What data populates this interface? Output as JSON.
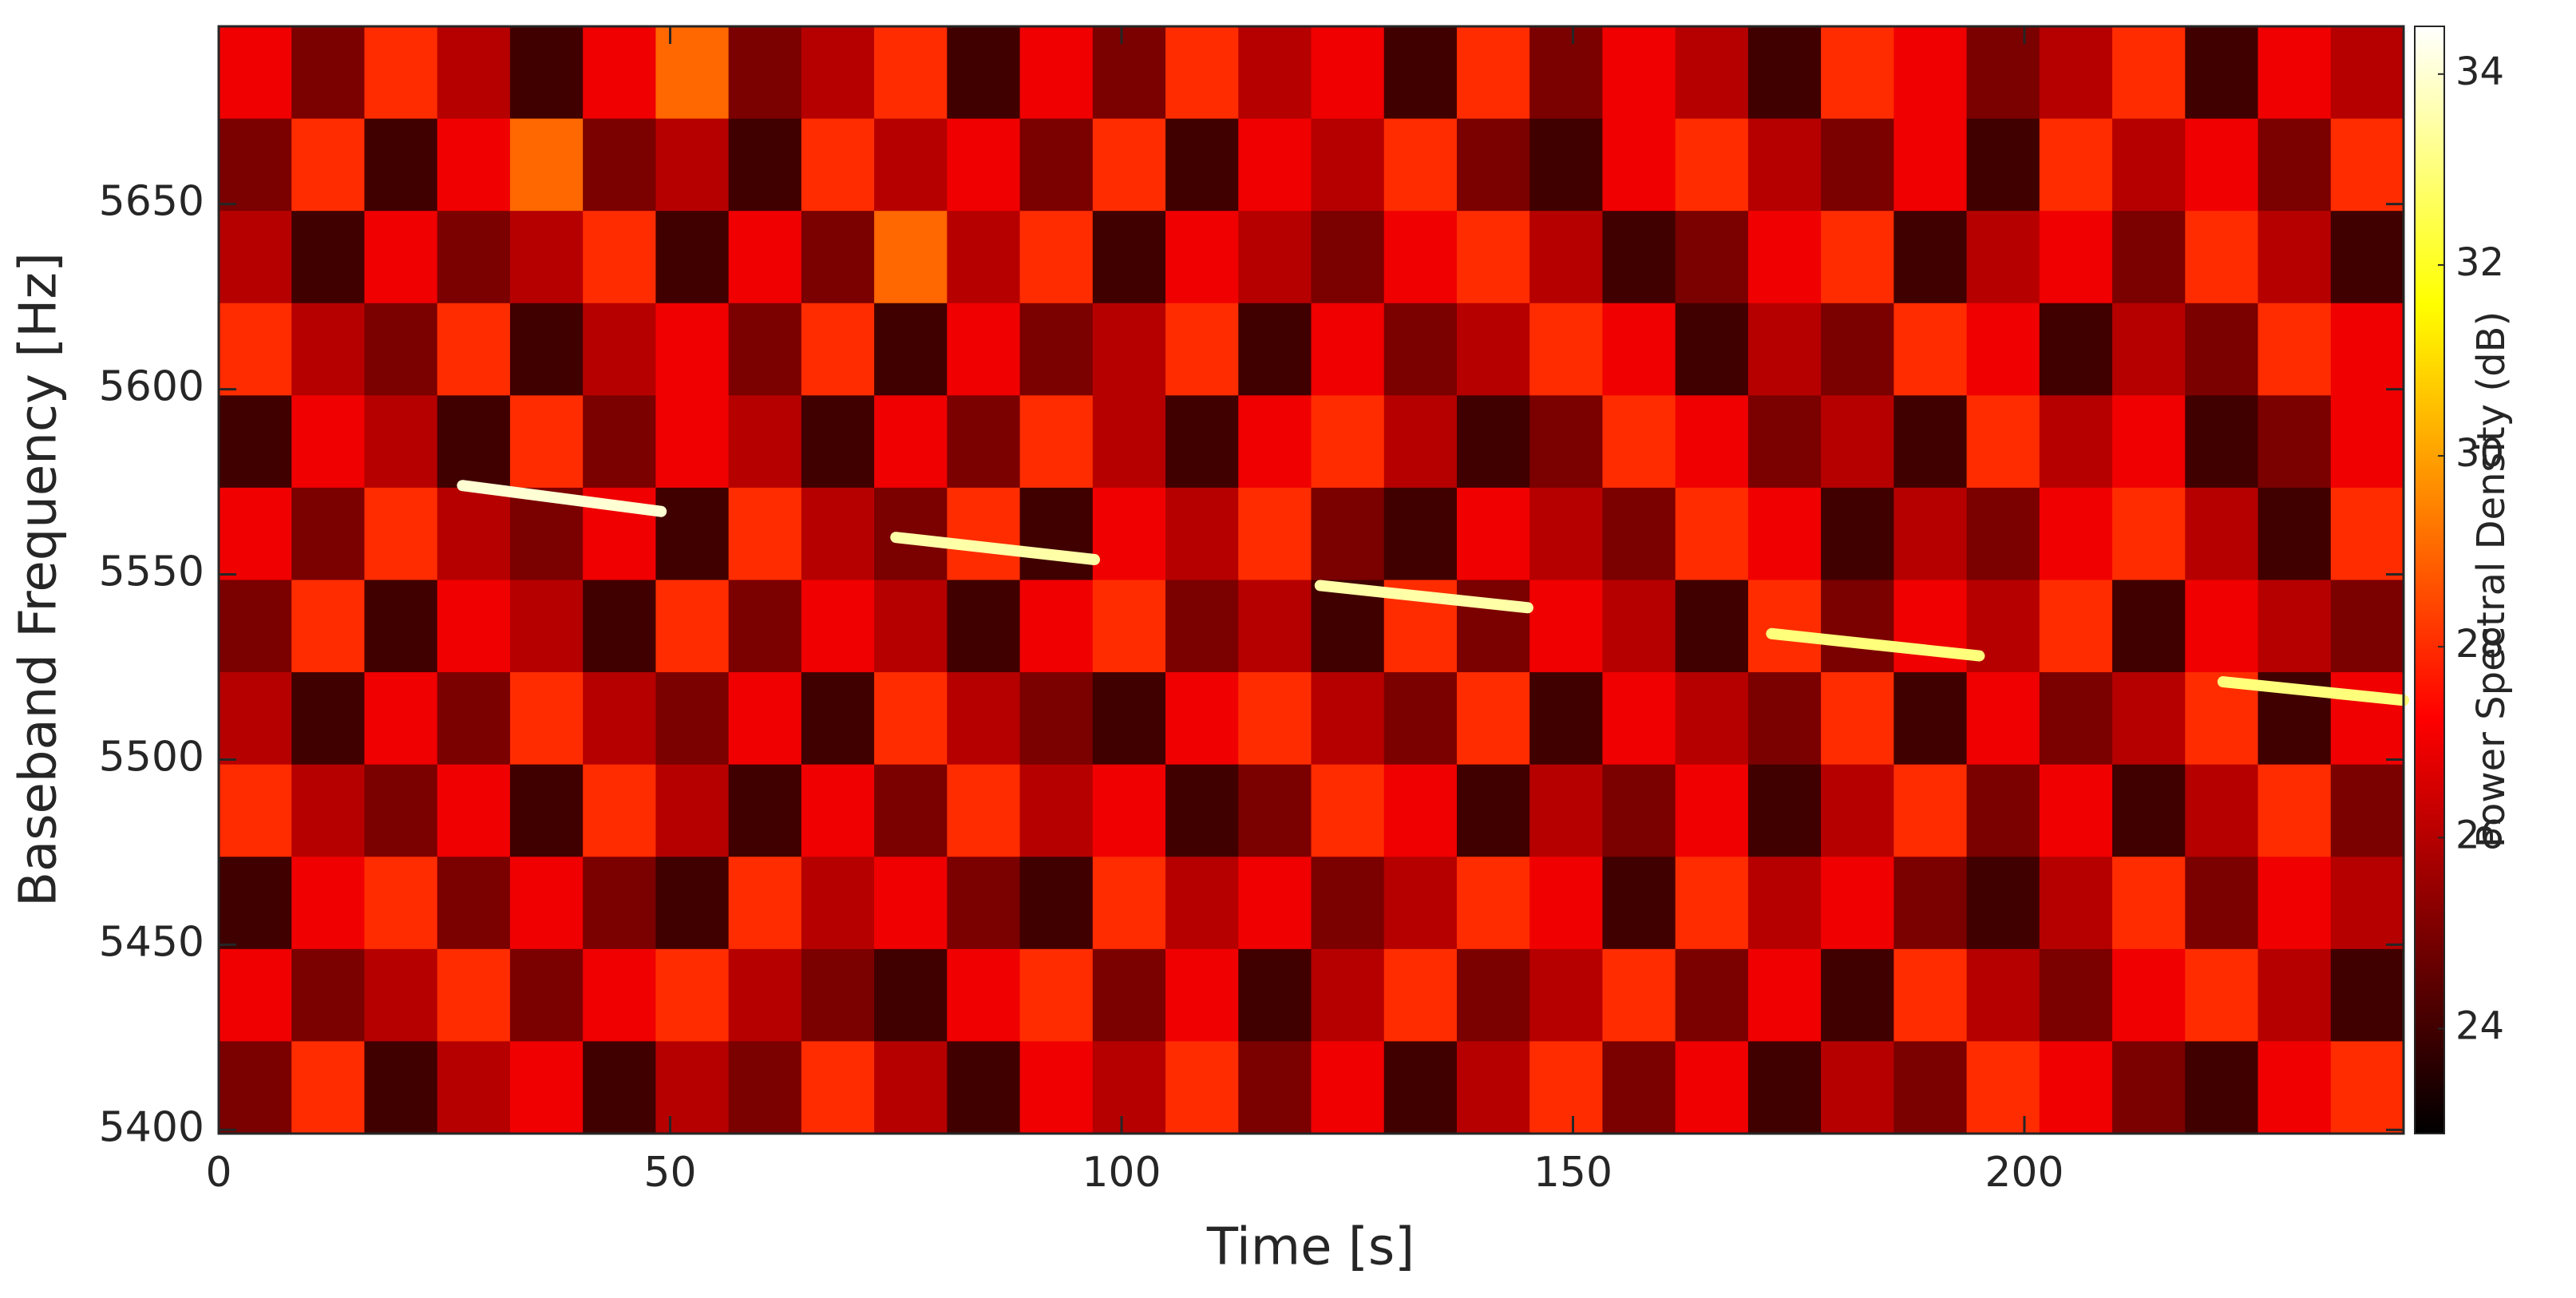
{
  "chart_data": {
    "type": "heatmap",
    "x_label": "Time [s]",
    "y_label": "Baseband Frequency [Hz]",
    "colorbar_label": "Power Spectral Density (dB)",
    "colormap": "hot",
    "xlim": [
      0,
      242
    ],
    "ylim": [
      5399,
      5698
    ],
    "clim": [
      22.9,
      34.5
    ],
    "xticks": [
      0,
      50,
      100,
      150,
      200
    ],
    "yticks": [
      5400,
      5450,
      5500,
      5550,
      5600,
      5650
    ],
    "cticks": [
      24,
      26,
      28,
      30,
      32,
      34
    ],
    "z": [
      [
        27,
        25,
        28,
        26,
        24,
        27,
        29,
        25,
        26,
        28,
        24,
        27,
        25,
        28,
        26,
        27,
        24,
        28,
        25,
        27,
        26,
        24,
        28,
        27,
        25,
        26,
        28,
        24,
        27,
        26
      ],
      [
        25,
        28,
        24,
        27,
        29,
        25,
        26,
        24,
        28,
        26,
        27,
        25,
        28,
        24,
        27,
        26,
        28,
        25,
        24,
        27,
        28,
        26,
        25,
        27,
        24,
        28,
        26,
        27,
        25,
        28
      ],
      [
        26,
        24,
        27,
        25,
        26,
        28,
        24,
        27,
        25,
        29,
        26,
        28,
        24,
        27,
        26,
        25,
        27,
        28,
        26,
        24,
        25,
        27,
        28,
        24,
        26,
        27,
        25,
        28,
        26,
        24
      ],
      [
        28,
        26,
        25,
        28,
        24,
        26,
        27,
        25,
        28,
        24,
        27,
        25,
        26,
        28,
        24,
        27,
        25,
        26,
        28,
        27,
        24,
        26,
        25,
        28,
        27,
        24,
        26,
        25,
        28,
        27
      ],
      [
        24,
        27,
        26,
        24,
        28,
        25,
        27,
        26,
        24,
        27,
        25,
        28,
        26,
        24,
        27,
        28,
        26,
        24,
        25,
        28,
        27,
        25,
        26,
        24,
        28,
        26,
        27,
        24,
        25,
        27
      ],
      [
        27,
        25,
        28,
        26,
        25,
        27,
        24,
        28,
        26,
        25,
        28,
        24,
        27,
        26,
        28,
        25,
        24,
        27,
        26,
        25,
        28,
        27,
        24,
        26,
        25,
        27,
        28,
        26,
        24,
        28
      ],
      [
        25,
        28,
        24,
        27,
        26,
        24,
        28,
        25,
        27,
        26,
        24,
        27,
        28,
        25,
        26,
        24,
        28,
        25,
        27,
        26,
        24,
        28,
        25,
        27,
        26,
        28,
        24,
        27,
        26,
        25
      ],
      [
        26,
        24,
        27,
        25,
        28,
        26,
        25,
        27,
        24,
        28,
        26,
        25,
        24,
        27,
        28,
        26,
        25,
        28,
        24,
        27,
        26,
        25,
        28,
        24,
        27,
        25,
        26,
        28,
        24,
        27
      ],
      [
        28,
        26,
        25,
        27,
        24,
        28,
        26,
        24,
        27,
        25,
        28,
        26,
        27,
        24,
        25,
        28,
        27,
        24,
        26,
        25,
        27,
        24,
        26,
        28,
        25,
        27,
        24,
        26,
        28,
        25
      ],
      [
        24,
        27,
        28,
        25,
        27,
        25,
        24,
        28,
        26,
        27,
        25,
        24,
        28,
        26,
        27,
        25,
        26,
        28,
        27,
        24,
        28,
        26,
        27,
        25,
        24,
        26,
        28,
        25,
        27,
        26
      ],
      [
        27,
        25,
        26,
        28,
        25,
        27,
        28,
        26,
        25,
        24,
        27,
        28,
        25,
        27,
        24,
        26,
        28,
        25,
        26,
        28,
        25,
        27,
        24,
        28,
        26,
        25,
        27,
        28,
        26,
        24
      ],
      [
        25,
        28,
        24,
        26,
        27,
        24,
        26,
        25,
        28,
        26,
        24,
        27,
        26,
        28,
        25,
        27,
        24,
        26,
        28,
        25,
        27,
        24,
        26,
        25,
        28,
        27,
        25,
        24,
        27,
        28
      ]
    ],
    "tracks": [
      {
        "x": [
          27,
          49
        ],
        "y": [
          5574,
          5567
        ],
        "value": 34
      },
      {
        "x": [
          75,
          97
        ],
        "y": [
          5560,
          5554
        ],
        "value": 33.5
      },
      {
        "x": [
          122,
          145
        ],
        "y": [
          5547,
          5541
        ],
        "value": 33.5
      },
      {
        "x": [
          172,
          195
        ],
        "y": [
          5534,
          5528
        ],
        "value": 33
      },
      {
        "x": [
          222,
          242
        ],
        "y": [
          5521,
          5516
        ],
        "value": 33
      }
    ]
  }
}
